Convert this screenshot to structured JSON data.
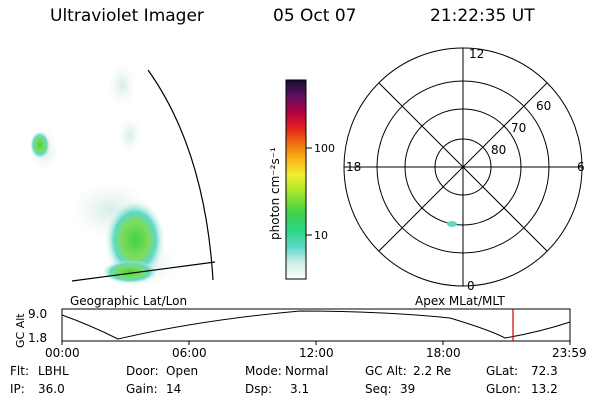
{
  "header": {
    "title": "Ultraviolet Imager",
    "date": "05 Oct 07",
    "time": "21:22:35 UT"
  },
  "geo_panel": {
    "label": "Geographic Lat/Lon"
  },
  "colorbar": {
    "label": "photon cm⁻²s⁻¹",
    "ticks": [
      "100",
      "10"
    ]
  },
  "polar_plot": {
    "label": "Apex MLat/MLT",
    "mlt_labels": {
      "top": "12",
      "left": "18",
      "right": "6",
      "bottom": "0"
    },
    "lat_labels": [
      "60",
      "70",
      "80"
    ]
  },
  "altitude_plot": {
    "ylabel": "GC Alt",
    "yticks": [
      "9.0",
      "1.8"
    ],
    "xticks": [
      "00:00",
      "06:00",
      "12:00",
      "18:00",
      "23:59"
    ]
  },
  "info": {
    "row1": [
      {
        "label": "Flt:",
        "value": "LBHL"
      },
      {
        "label": "Door:",
        "value": "Open"
      },
      {
        "label": "Mode:",
        "value": "Normal"
      },
      {
        "label": "GC Alt:",
        "value": "2.2 Re"
      },
      {
        "label": "GLat:",
        "value": "72.3"
      }
    ],
    "row2": [
      {
        "label": "IP:",
        "value": "36.0"
      },
      {
        "label": "Gain:",
        "value": "14"
      },
      {
        "label": "Dsp:",
        "value": "3.1"
      },
      {
        "label": "Seq:",
        "value": "39"
      },
      {
        "label": "GLon:",
        "value": "13.2"
      }
    ]
  },
  "colors": {
    "aurora_green": "#3fd24a",
    "aurora_pale": "#d6ece8",
    "time_marker": "#d00000"
  }
}
